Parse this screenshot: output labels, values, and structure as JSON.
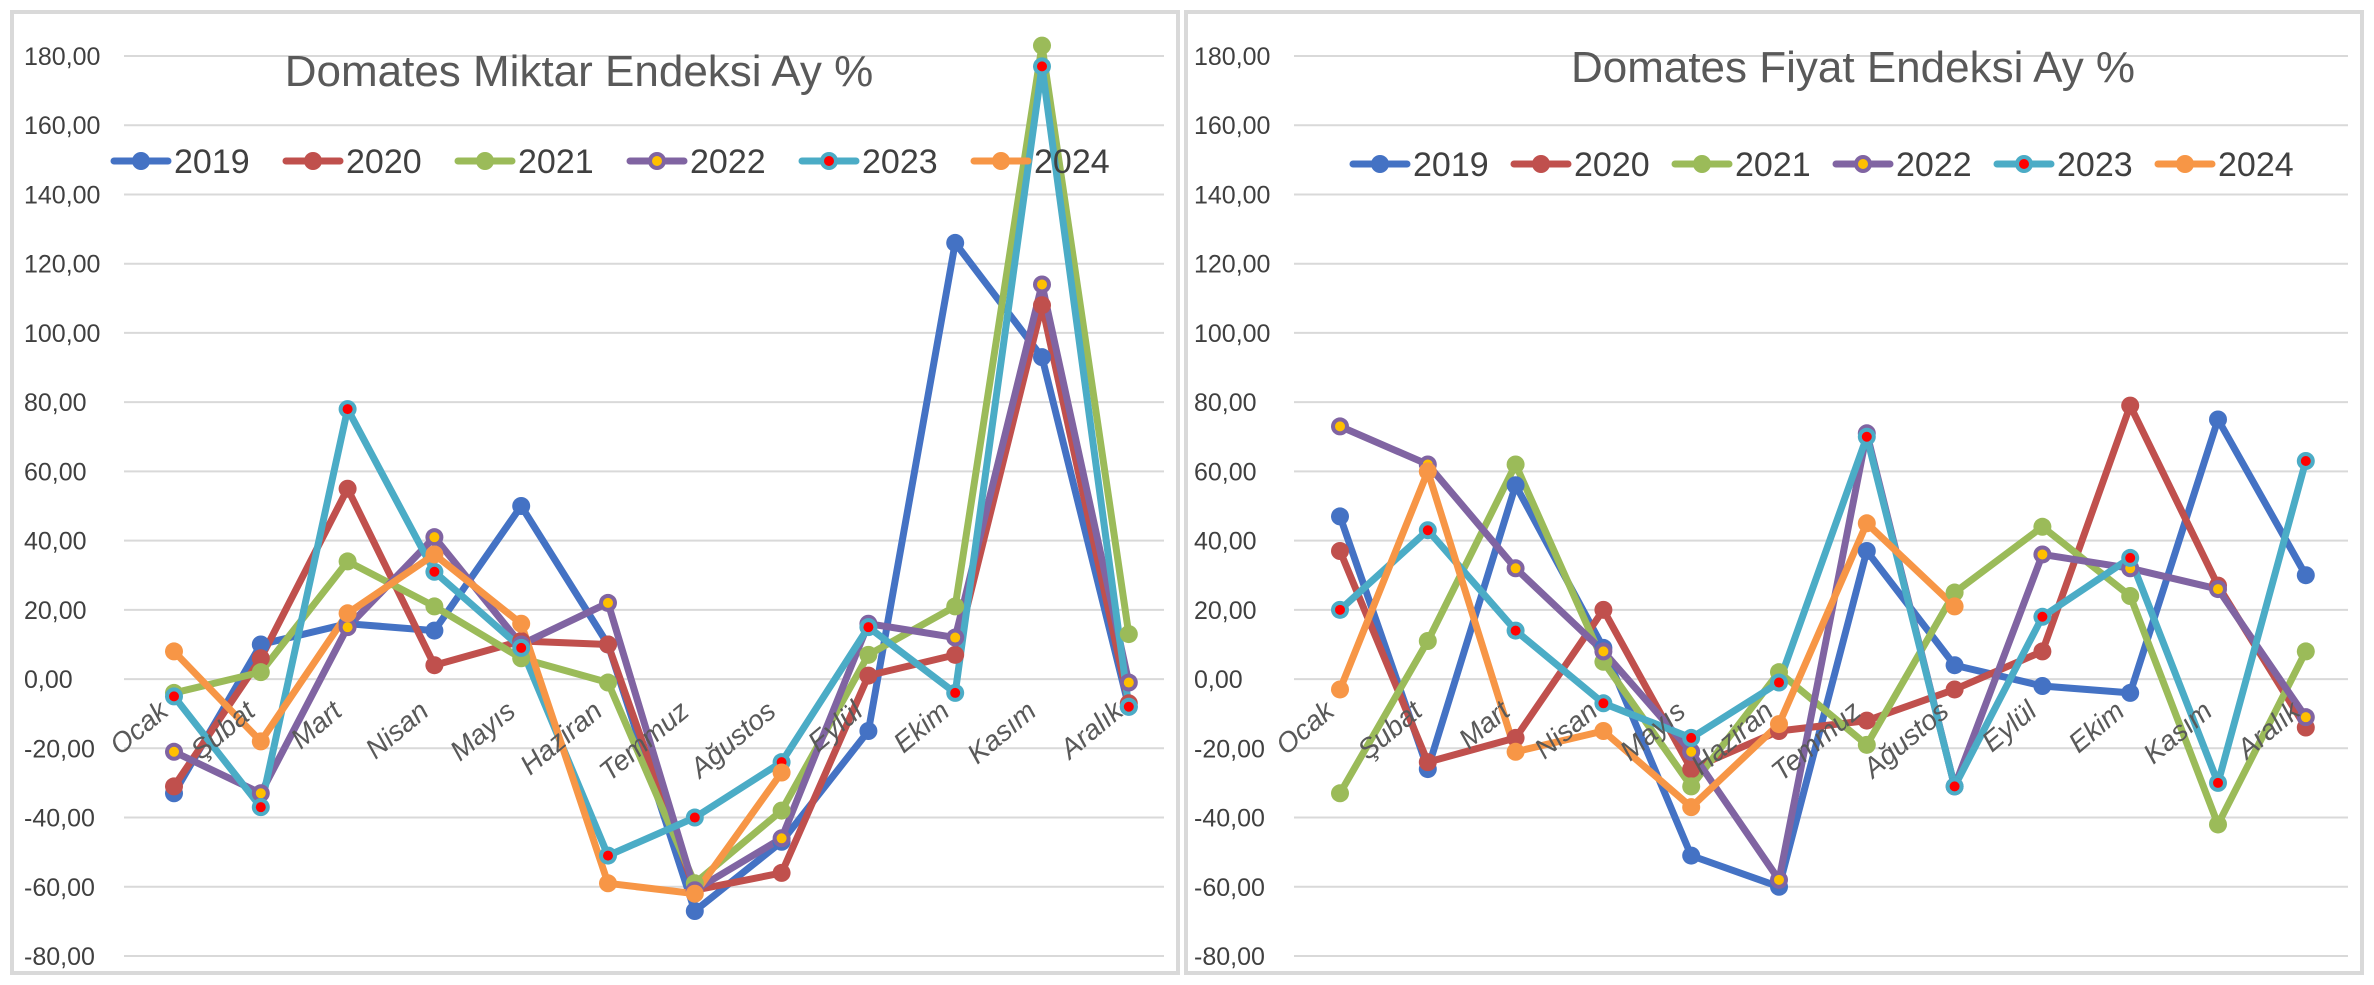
{
  "chart_data": [
    {
      "type": "line",
      "title": "Domates Miktar Endeksi Ay  %",
      "xlabel": "",
      "ylabel": "",
      "ylim": [
        -80,
        180
      ],
      "yticks": [
        "180,00",
        "160,00",
        "140,00",
        "120,00",
        "100,00",
        "80,00",
        "60,00",
        "40,00",
        "20,00",
        "0,00",
        "-20,00",
        "-40,00",
        "-60,00",
        "-80,00"
      ],
      "grid": true,
      "legend_position": "top",
      "categories": [
        "Ocak",
        "Şubat",
        "Mart",
        "Nisan",
        "Mayıs",
        "Haziran",
        "Temmuz",
        "Ağustos",
        "Eylül",
        "Ekim",
        "Kasım",
        "Aralık"
      ],
      "series": [
        {
          "name": "2019",
          "color": "#4472c4",
          "values": [
            -33,
            10,
            16,
            14,
            50,
            10,
            -67,
            -47,
            -15,
            126,
            93,
            -8
          ]
        },
        {
          "name": "2020",
          "color": "#c0504d",
          "values": [
            -31,
            6,
            55,
            4,
            11,
            10,
            -61,
            -56,
            1,
            7,
            108,
            -7
          ]
        },
        {
          "name": "2021",
          "color": "#9bbb59",
          "values": [
            -4,
            2,
            34,
            21,
            6,
            -1,
            -59,
            -38,
            7,
            21,
            183,
            13
          ]
        },
        {
          "name": "2022",
          "color": "#8064a2",
          "values": [
            -21,
            -33,
            15,
            41,
            10,
            22,
            -61,
            -46,
            16,
            12,
            114,
            -1
          ]
        },
        {
          "name": "2023",
          "color": "#4bacc6",
          "values": [
            -5,
            -37,
            78,
            31,
            9,
            -51,
            -40,
            -24,
            15,
            -4,
            177,
            -8
          ]
        },
        {
          "name": "2024",
          "color": "#f79646",
          "values": [
            8,
            -18,
            19,
            36,
            16,
            -59,
            -62,
            -27,
            null,
            null,
            null,
            null
          ]
        }
      ]
    },
    {
      "type": "line",
      "title": "Domates Fiyat Endeksi Ay %",
      "xlabel": "",
      "ylabel": "",
      "ylim": [
        -80,
        180
      ],
      "yticks": [
        "180,00",
        "160,00",
        "140,00",
        "120,00",
        "100,00",
        "80,00",
        "60,00",
        "40,00",
        "20,00",
        "0,00",
        "-20,00",
        "-40,00",
        "-60,00",
        "-80,00"
      ],
      "grid": true,
      "legend_position": "top",
      "categories": [
        "Ocak",
        "Şubat",
        "Mart",
        "Nisan",
        "Mayıs",
        "Haziran",
        "Temmuz",
        "Ağustos",
        "Eylül",
        "Ekim",
        "Kasım",
        "Aralık"
      ],
      "series": [
        {
          "name": "2019",
          "color": "#4472c4",
          "values": [
            47,
            -26,
            56,
            9,
            -51,
            -60,
            37,
            4,
            -2,
            -4,
            75,
            30
          ]
        },
        {
          "name": "2020",
          "color": "#c0504d",
          "values": [
            37,
            -24,
            -17,
            20,
            -26,
            -15,
            -12,
            -3,
            8,
            79,
            27,
            -14
          ]
        },
        {
          "name": "2021",
          "color": "#9bbb59",
          "values": [
            -33,
            11,
            62,
            5,
            -31,
            2,
            -19,
            25,
            44,
            24,
            -42,
            8
          ]
        },
        {
          "name": "2022",
          "color": "#8064a2",
          "values": [
            73,
            62,
            32,
            8,
            -21,
            -58,
            71,
            -31,
            36,
            32,
            26,
            -11
          ]
        },
        {
          "name": "2023",
          "color": "#4bacc6",
          "values": [
            20,
            43,
            14,
            -7,
            -17,
            -1,
            70,
            -31,
            18,
            35,
            -30,
            63
          ]
        },
        {
          "name": "2024",
          "color": "#f79646",
          "values": [
            -3,
            60,
            -21,
            -15,
            -37,
            -13,
            45,
            21,
            null,
            null,
            null,
            null
          ]
        }
      ]
    }
  ]
}
